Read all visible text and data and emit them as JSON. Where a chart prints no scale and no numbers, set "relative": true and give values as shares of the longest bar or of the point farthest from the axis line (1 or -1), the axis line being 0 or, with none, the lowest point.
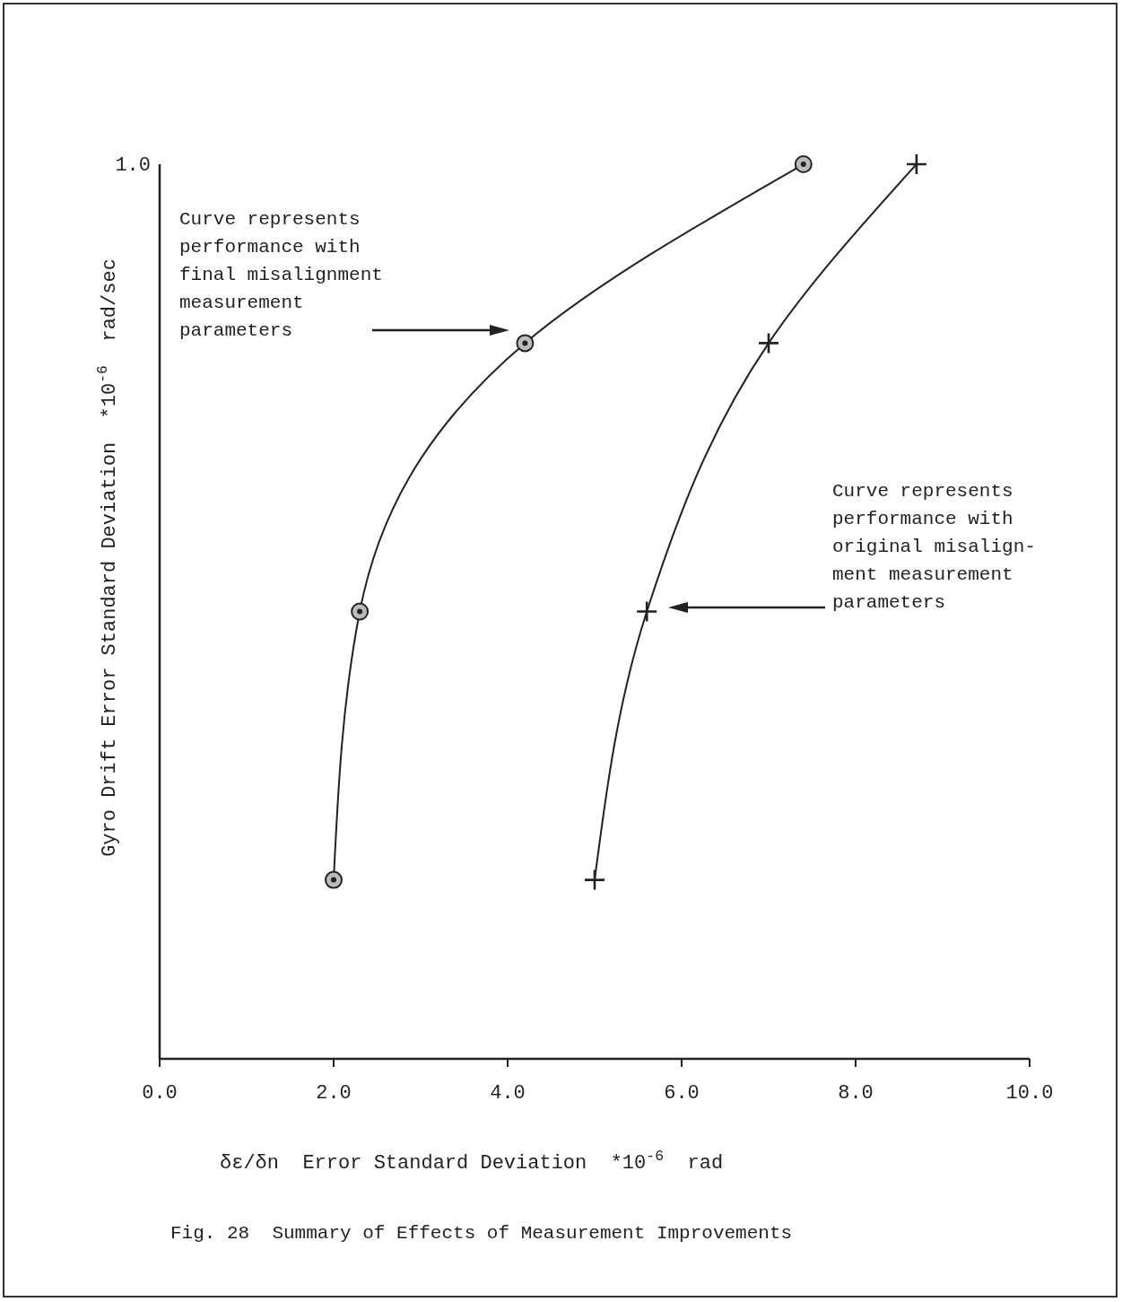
{
  "chart_data": {
    "type": "line",
    "xlabel": "δε/δn  Error Standard Deviation  *10$^{-6}$  rad",
    "ylabel": "Gyro Drift Error Standard Deviation  *10$^{-6}$  rad/sec",
    "xlim": [
      0,
      10
    ],
    "xticks": [
      {
        "value": 0,
        "label": "0.0"
      },
      {
        "value": 2,
        "label": "2.0"
      },
      {
        "value": 4,
        "label": "4.0"
      },
      {
        "value": 6,
        "label": "6.0"
      },
      {
        "value": 8,
        "label": "8.0"
      },
      {
        "value": 10,
        "label": "10.0"
      }
    ],
    "relative": true,
    "line_style": "solid",
    "series": [
      {
        "color": "#222222",
        "marker": "circle",
        "x": [
          2.0,
          2.3,
          4.2,
          7.4
        ],
        "values": [
          0.2,
          0.5,
          0.8,
          1.0
        ]
      },
      {
        "color": "#222222",
        "marker": "cross",
        "x": [
          5.0,
          5.6,
          7.0,
          8.7
        ],
        "values": [
          0.2,
          0.5,
          0.8,
          1.0
        ]
      }
    ],
    "annotations": [
      "1.0",
      "Curve represents\nperformance with\nfinal misalignment\nmeasurement\nparameters",
      "Curve represents\nperformance with\noriginal misalign-\nment measurement\nparameters",
      "Fig. 28  Summary of Effects of Measurement Improvements"
    ]
  }
}
